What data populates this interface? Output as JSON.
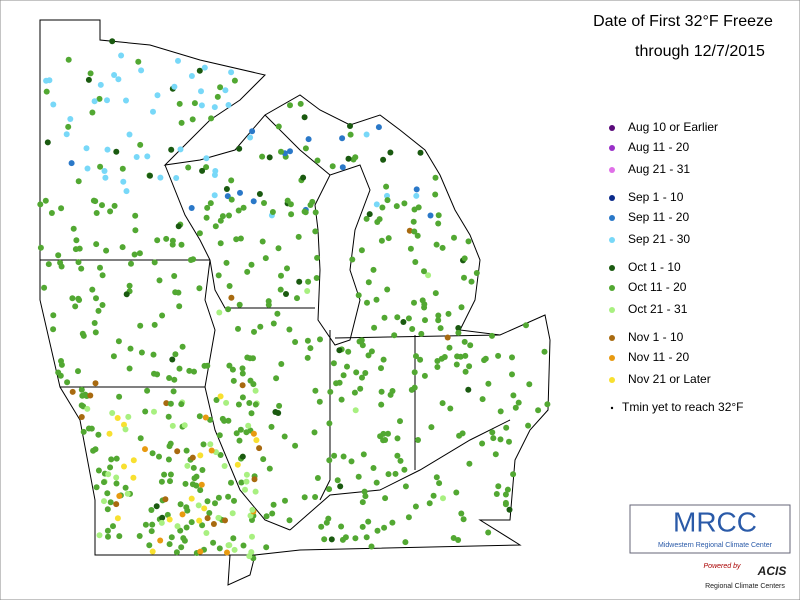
{
  "header": {
    "title": "Date of First 32°F Freeze",
    "subtitle": "through 12/7/2015"
  },
  "legend": [
    {
      "label": "Aug 10 or Earlier",
      "color": "#5a0a7a"
    },
    {
      "label": "Aug 11 - 20",
      "color": "#9a30c8"
    },
    {
      "label": "Aug 21 - 31",
      "color": "#e070e8"
    },
    {
      "label": "Sep 1 - 10",
      "color": "#0a2a8a"
    },
    {
      "label": "Sep 11 - 20",
      "color": "#2a78c8"
    },
    {
      "label": "Sep 21 - 30",
      "color": "#78d8f8"
    },
    {
      "label": "Oct 1 - 10",
      "color": "#1a5a10"
    },
    {
      "label": "Oct 11 - 20",
      "color": "#52a832"
    },
    {
      "label": "Oct 21 - 31",
      "color": "#a8f080"
    },
    {
      "label": "Nov 1 - 10",
      "color": "#a86a10"
    },
    {
      "label": "Nov 11 - 20",
      "color": "#e89a10"
    },
    {
      "label": "Nov 21 or Later",
      "color": "#f8e030"
    },
    {
      "label": "Tmin yet to reach 32°F",
      "color": "#000000"
    }
  ],
  "logo": {
    "name": "MRCC",
    "full_name": "Midwestern Regional Climate Center",
    "powered": "Powered by",
    "acis": "ACIS",
    "rcc": "Regional Climate Centers"
  }
}
